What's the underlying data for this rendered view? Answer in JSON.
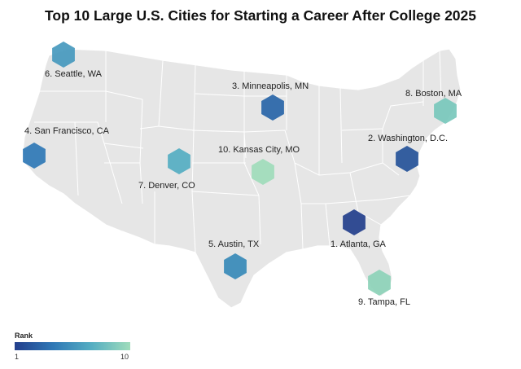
{
  "title": "Top 10 Large U.S. Cities for Starting a Career After College 2025",
  "legend": {
    "title": "Rank",
    "min_label": "1",
    "max_label": "10",
    "color_low": "#233f8c",
    "color_high": "#9fdcbb"
  },
  "cities": [
    {
      "rank": 1,
      "label": "1. Atlanta, GA",
      "color": "#233f8c"
    },
    {
      "rank": 2,
      "label": "2. Washington, D.C.",
      "color": "#255399"
    },
    {
      "rank": 3,
      "label": "3. Minneapolis, MN",
      "color": "#2865a8"
    },
    {
      "rank": 4,
      "label": "4. San Francisco, CA",
      "color": "#2f78b6"
    },
    {
      "rank": 5,
      "label": "5. Austin, TX",
      "color": "#378ab9"
    },
    {
      "rank": 6,
      "label": "6. Seattle, WA",
      "color": "#4699be"
    },
    {
      "rank": 7,
      "label": "7. Denver, CO",
      "color": "#55aec2"
    },
    {
      "rank": 8,
      "label": "8. Boston, MA",
      "color": "#78c8bc"
    },
    {
      "rank": 9,
      "label": "9. Tampa, FL",
      "color": "#8dd2b8"
    },
    {
      "rank": 10,
      "label": "10. Kansas City, MO",
      "color": "#9fdcbb"
    }
  ]
}
